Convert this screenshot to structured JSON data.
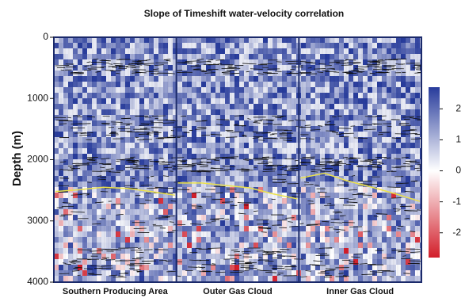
{
  "chart_data": {
    "type": "seismic-section",
    "title": "Slope of Timeshift water-velocity correlation",
    "y_label": "Depth (m)",
    "ylim": [
      0,
      4000
    ],
    "yticks": [
      0,
      1000,
      2000,
      3000,
      4000
    ],
    "categories": [
      "Southern Producing Area",
      "Outer Gas Cloud",
      "Inner Gas Cloud"
    ],
    "horizon": {
      "color": "#ece24a",
      "values": [
        [
          2520,
          2490,
          2450,
          2470,
          2520,
          2580
        ],
        [
          2380,
          2380,
          2420,
          2460,
          2560,
          2640
        ],
        [
          2300,
          2220,
          2350,
          2450,
          2560,
          2680
        ]
      ]
    },
    "colorbar": {
      "clim": [
        -2.8,
        2.7
      ],
      "ticks": [
        2,
        1,
        0,
        -1,
        -2
      ],
      "colors": [
        "#d21e2a",
        "#ffffff",
        "#283c9c"
      ]
    }
  }
}
